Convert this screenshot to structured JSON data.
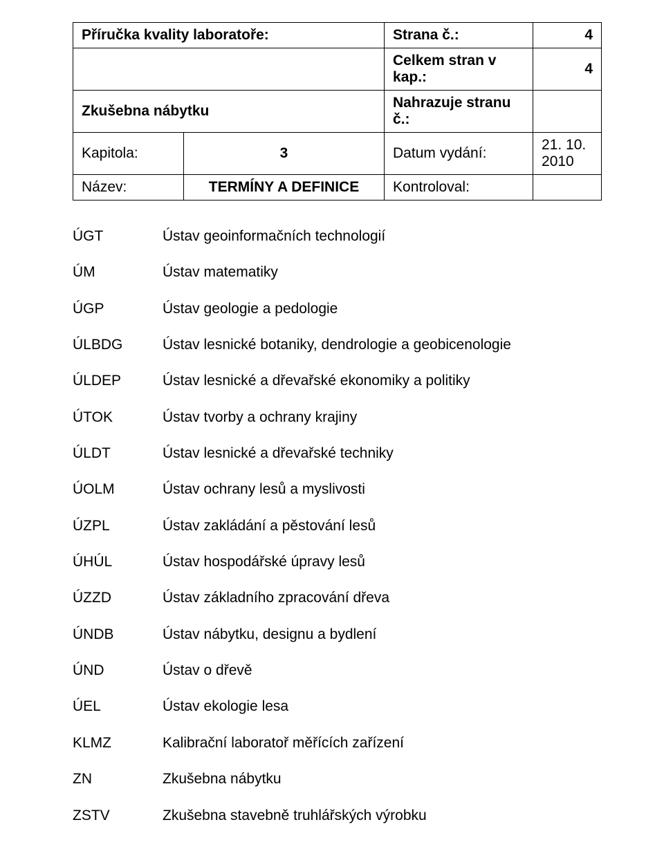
{
  "header": {
    "row1": {
      "left": "Příručka kvality laboratoře:",
      "label": "Strana č.:",
      "value": "4"
    },
    "row2": {
      "left": "",
      "label": "Celkem stran v kap.:",
      "value": "4"
    },
    "row3": {
      "left": "Zkušebna nábytku",
      "label": "Nahrazuje stranu č.:",
      "value": ""
    },
    "row4": {
      "col1": "Kapitola:",
      "col2": "3",
      "label": "Datum vydání:",
      "value": "21. 10. 2010"
    },
    "row5": {
      "col1": "Název:",
      "col2": "TERMÍNY A DEFINICE",
      "label": "Kontroloval:",
      "value": ""
    }
  },
  "definitions": [
    {
      "abbr": "ÚGT",
      "desc": "Ústav geoinformačních technologií"
    },
    {
      "abbr": "ÚM",
      "desc": "Ústav matematiky"
    },
    {
      "abbr": "ÚGP",
      "desc": "Ústav geologie a pedologie"
    },
    {
      "abbr": "ÚLBDG",
      "desc": "Ústav lesnické botaniky, dendrologie a geobicenologie"
    },
    {
      "abbr": "ÚLDEP",
      "desc": "Ústav lesnické a dřevařské ekonomiky a politiky"
    },
    {
      "abbr": "ÚTOK",
      "desc": "Ústav tvorby a ochrany krajiny"
    },
    {
      "abbr": "ÚLDT",
      "desc": "Ústav lesnické a dřevařské techniky"
    },
    {
      "abbr": "ÚOLM",
      "desc": "Ústav ochrany lesů a myslivosti"
    },
    {
      "abbr": "ÚZPL",
      "desc": "Ústav zakládání a pěstování lesů"
    },
    {
      "abbr": "ÚHÚL",
      "desc": "Ústav hospodářské úpravy lesů"
    },
    {
      "abbr": "ÚZZD",
      "desc": "Ústav základního zpracování dřeva"
    },
    {
      "abbr": "ÚNDB",
      "desc": "Ústav nábytku, designu a bydlení"
    },
    {
      "abbr": "ÚND",
      "desc": "Ústav o dřevě"
    },
    {
      "abbr": "ÚEL",
      "desc": "Ústav ekologie lesa"
    },
    {
      "abbr": "KLMZ",
      "desc": "Kalibrační laboratoř měřících zařízení"
    },
    {
      "abbr": "ZN",
      "desc": "Zkušebna nábytku"
    },
    {
      "abbr": "ZSTV",
      "desc": "Zkušebna stavebně truhlářských výrobku"
    }
  ]
}
